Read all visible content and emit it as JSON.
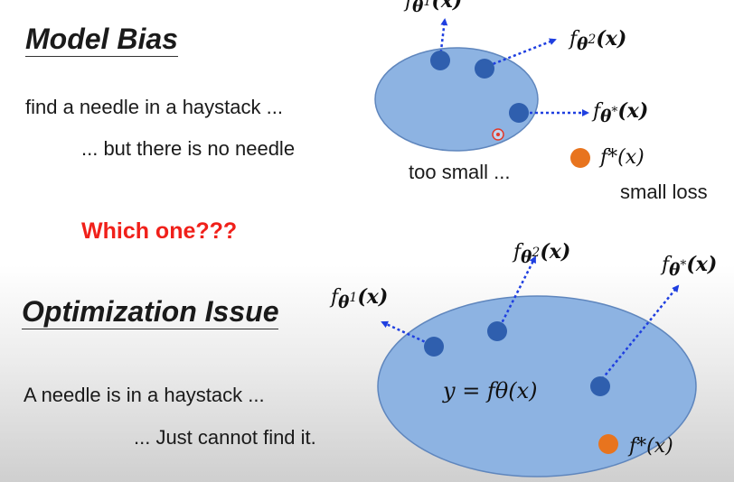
{
  "model_bias": {
    "heading": "Model Bias",
    "line1": "find a needle in a haystack ...",
    "line2": "... but there is no needle",
    "too_small": "too small ...",
    "small_loss": "small loss"
  },
  "question": "Which one???",
  "optimization": {
    "heading": "Optimization Issue",
    "line1": "A needle is in a haystack ...",
    "line2": "... Just cannot find it.",
    "equation": "y = fθ(x)"
  },
  "labels": {
    "f": "f",
    "theta": "θ",
    "x_paren": "(x)",
    "sup1": "1",
    "sup2": "2",
    "supstar": "*",
    "fstar": "f*(x)"
  },
  "colors": {
    "ellipse_fill": "#8db3e2",
    "ellipse_stroke": "#5f86bd",
    "blue_dot": "#2f5fae",
    "orange_dot": "#e8741e",
    "arrow": "#1f3fe0",
    "question_red": "#f0201a"
  }
}
